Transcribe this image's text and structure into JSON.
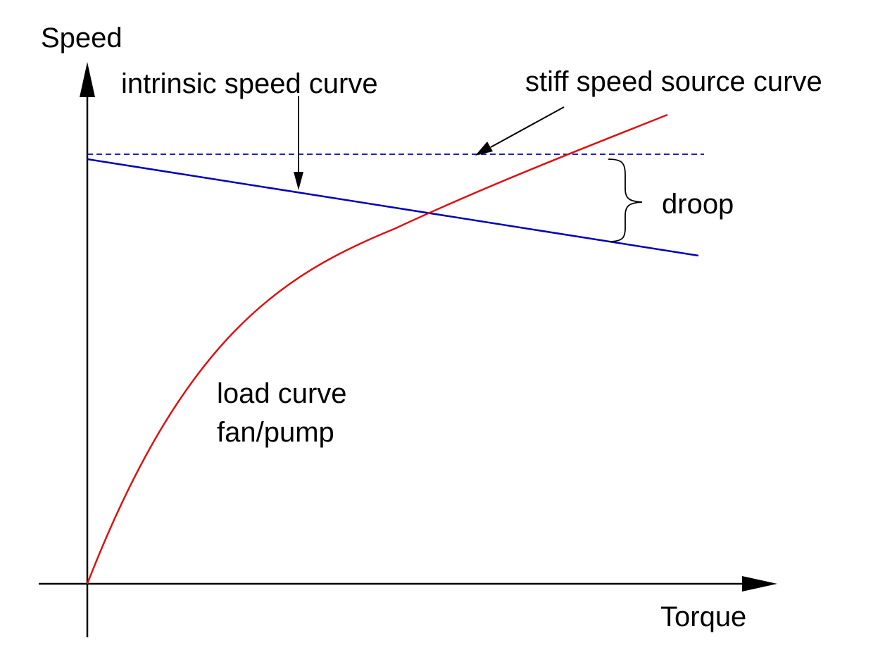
{
  "labels": {
    "y_axis": "Speed",
    "x_axis": "Torque",
    "intrinsic": "intrinsic speed curve",
    "stiff": "stiff speed source curve",
    "droop": "droop",
    "load_line1": "load curve",
    "load_line2": "fan/pump"
  },
  "colors": {
    "axes": "#000000",
    "intrinsic_curve": "#0000bb",
    "stiff_curve": "#0000bb",
    "load_curve": "#dd1111",
    "text": "#000000"
  }
}
